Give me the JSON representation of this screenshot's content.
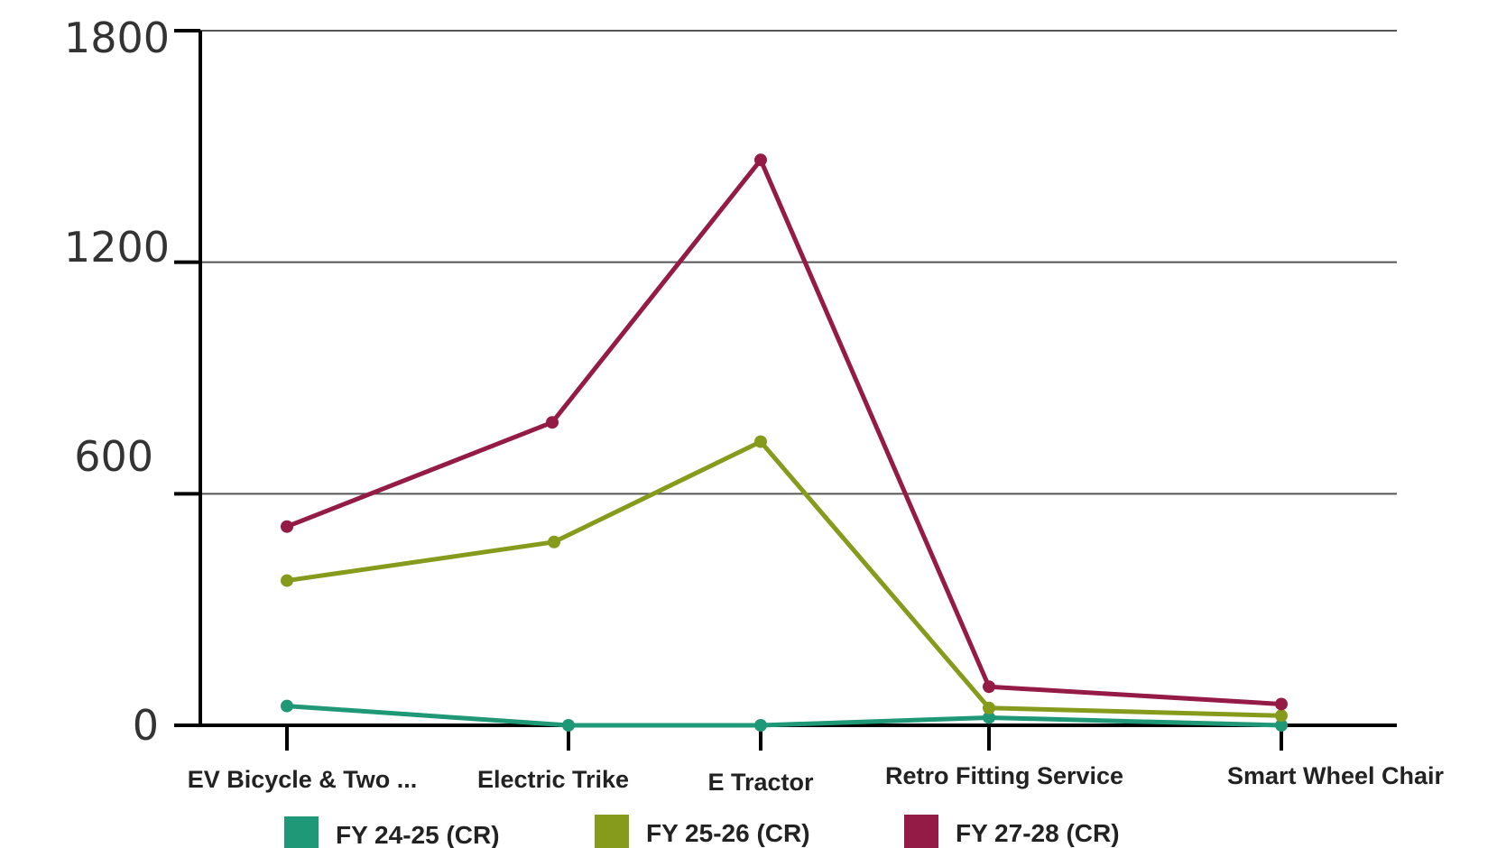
{
  "chart_data": {
    "type": "line",
    "categories": [
      "EV Bicycle & Two ...",
      "Electric Trike",
      "E Tractor",
      "Retro Fitting Service",
      "Smart Wheel Chair"
    ],
    "y_ticks": [
      "1800",
      "1200",
      "600",
      "0"
    ],
    "ylim": [
      0,
      1800
    ],
    "grid": true,
    "legend_position": "bottom",
    "series": [
      {
        "name": "FY 24-25 (CR)",
        "color": "#1e9877",
        "values": [
          50,
          0,
          0,
          20,
          0
        ]
      },
      {
        "name": "FY 25-26 (CR)",
        "color": "#869a1c",
        "values": [
          375,
          475,
          735,
          45,
          25
        ]
      },
      {
        "name": "FY 27-28 (CR)",
        "color": "#951b47",
        "values": [
          515,
          785,
          1465,
          100,
          55
        ]
      }
    ]
  }
}
